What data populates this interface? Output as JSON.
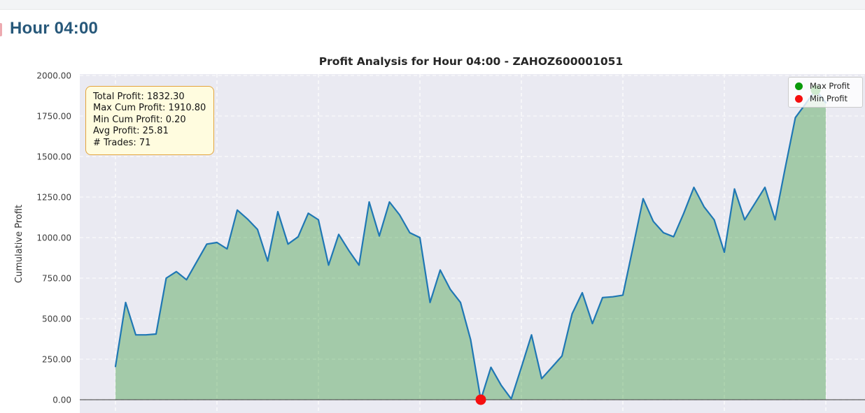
{
  "page": {
    "title": "Hour 04:00"
  },
  "chart_data": {
    "type": "area",
    "title": "Profit Analysis for Hour 04:00 - ZAHOZ600001051",
    "xlabel": "",
    "ylabel": "Cumulative Profit",
    "n_trades": 71,
    "values": [
      205,
      600,
      400,
      400,
      405,
      750,
      790,
      740,
      850,
      960,
      970,
      930,
      1170,
      1115,
      1050,
      855,
      1160,
      960,
      1005,
      1150,
      1110,
      830,
      1020,
      920,
      830,
      1220,
      1010,
      1220,
      1140,
      1030,
      1000,
      600,
      800,
      680,
      600,
      370,
      0.2,
      200,
      90,
      5,
      200,
      400,
      130,
      200,
      270,
      530,
      660,
      470,
      630,
      635,
      645,
      940,
      1240,
      1100,
      1030,
      1005,
      1150,
      1310,
      1190,
      1110,
      910,
      1300,
      1110,
      1210,
      1310,
      1110,
      1430,
      1740,
      1825,
      1910.8,
      1832.3
    ],
    "yticks": [
      0,
      250,
      500,
      750,
      1000,
      1250,
      1500,
      1750,
      2000
    ],
    "ytick_format": "two-decimals",
    "ylim": [
      -95,
      2010
    ],
    "grid": "white dashed on lavender, horizontal at each ytick, vertical every 10 trades",
    "legend": {
      "position": "upper right",
      "items": [
        {
          "label": "Max Profit",
          "color": "#0a9a0a"
        },
        {
          "label": "Min Profit",
          "color": "#f50f0f"
        }
      ]
    },
    "markers": {
      "max_index": 69,
      "max_value": 1910.8,
      "min_index": 36,
      "min_value": 0.2
    },
    "annotation_box": [
      "Total Profit: 1832.30",
      "Max Cum Profit: 1910.80",
      "Min Cum Profit: 0.20",
      "Avg Profit: 25.81",
      "# Trades: 71"
    ]
  },
  "colors": {
    "heading": "#27587a",
    "line": "#1f77b4",
    "fill": "rgba(0,128,0,0.30)",
    "plot_bg": "#eaeaf2",
    "grid": "#ffffff",
    "zero_line": "rgba(70,70,70,0.55)",
    "max_marker": "#0a9a0a",
    "min_marker": "#f50f0f",
    "box_bg": "#fffcdf",
    "box_border": "#e3a43c",
    "tick_text": "#3d3d3d"
  }
}
